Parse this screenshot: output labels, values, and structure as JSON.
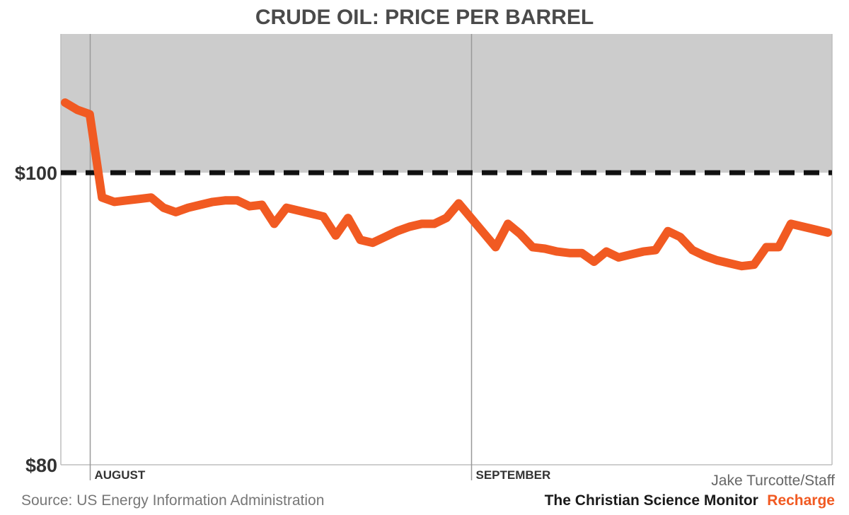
{
  "chart_data": {
    "type": "line",
    "title": "CRUDE OIL: PRICE PER BARREL",
    "xlabel": "",
    "ylabel": "",
    "ylim": [
      80,
      109.5
    ],
    "yticks": [
      {
        "value": 100,
        "label": "$100"
      },
      {
        "value": 80,
        "label": "$80"
      }
    ],
    "xticks": [
      {
        "index": 2,
        "label": "AUGUST"
      },
      {
        "index": 33,
        "label": "SEPTEMBER"
      }
    ],
    "reference_line": {
      "value": 100,
      "style": "dashed"
    },
    "shaded_above": 100,
    "series": [
      {
        "name": "Crude oil price per barrel",
        "color": "#f15a22",
        "values": [
          104.8,
          104.3,
          104.0,
          98.3,
          98.0,
          98.1,
          98.2,
          98.3,
          97.6,
          97.3,
          97.6,
          97.8,
          98.0,
          98.1,
          98.1,
          97.7,
          97.8,
          96.5,
          97.6,
          97.4,
          97.2,
          97.0,
          95.7,
          96.9,
          95.4,
          95.2,
          95.6,
          96.0,
          96.3,
          96.5,
          96.5,
          96.9,
          97.9,
          96.9,
          95.9,
          94.9,
          96.5,
          95.8,
          94.9,
          94.8,
          94.6,
          94.5,
          94.5,
          93.9,
          94.6,
          94.2,
          94.4,
          94.6,
          94.7,
          96.0,
          95.6,
          94.7,
          94.3,
          94.0,
          93.8,
          93.6,
          93.7,
          94.9,
          94.9,
          96.5,
          96.3,
          96.1,
          95.9
        ]
      }
    ]
  },
  "credit": "Jake Turcotte/Staff",
  "source": "Source: US Energy Information Administration",
  "publisher": {
    "name": "The Christian Science Monitor",
    "section": "Recharge"
  },
  "colors": {
    "line": "#f15a22",
    "shade": "#cccccc",
    "accent": "#f15a22",
    "reference": "#111111"
  }
}
